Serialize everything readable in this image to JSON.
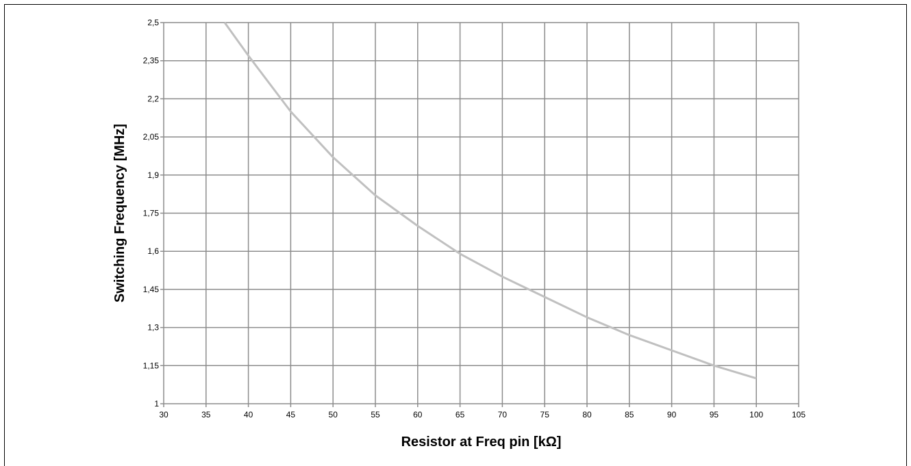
{
  "chart_data": {
    "type": "line",
    "title": "",
    "xlabel": "Resistor at Freq pin [kΩ]",
    "ylabel": "Switching Frequency  [MHz]",
    "xlim": [
      30,
      105
    ],
    "ylim": [
      1,
      2.5
    ],
    "x_ticks": [
      "30",
      "35",
      "40",
      "45",
      "50",
      "55",
      "60",
      "65",
      "70",
      "75",
      "80",
      "85",
      "90",
      "95",
      "100",
      "105"
    ],
    "y_ticks": [
      "1",
      "1,15",
      "1,3",
      "1,45",
      "1,6",
      "1,75",
      "1,9",
      "2,05",
      "2,2",
      "2,35",
      "2,5"
    ],
    "grid": true,
    "legend": "none",
    "line_color": "#c0c0c0",
    "grid_color": "#8c8c8c",
    "series": [
      {
        "x": [
          37.2,
          40,
          45,
          50,
          55,
          60,
          65,
          70,
          75,
          80,
          85,
          90,
          95,
          100
        ],
        "y": [
          2.5,
          2.37,
          2.15,
          1.97,
          1.82,
          1.7,
          1.59,
          1.5,
          1.42,
          1.34,
          1.27,
          1.21,
          1.15,
          1.1
        ]
      }
    ]
  }
}
